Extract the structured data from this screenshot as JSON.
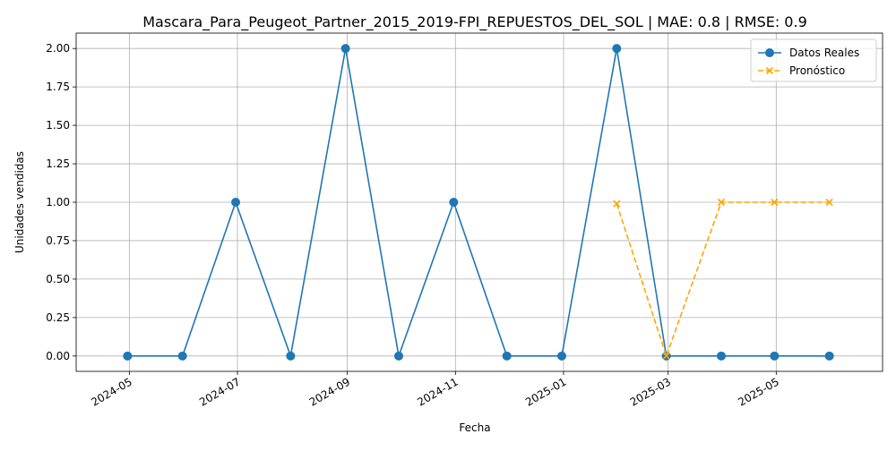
{
  "chart_data": {
    "type": "line",
    "title": "Mascara_Para_Peugeot_Partner_2015_2019-FPI_REPUESTOS_DEL_SOL | MAE: 0.8 | RMSE: 0.9",
    "xlabel": "Fecha",
    "ylabel": "Unidades vendidas",
    "xlim": [
      "2024-04-01",
      "2025-06-30"
    ],
    "ylim": [
      -0.1,
      2.1
    ],
    "grid": true,
    "legend_position": "top-right",
    "x_ticks": [
      "2024-05-01",
      "2024-07-01",
      "2024-09-01",
      "2024-11-01",
      "2025-01-01",
      "2025-03-01",
      "2025-05-01"
    ],
    "x_tick_labels": [
      "2024-05",
      "2024-07",
      "2024-09",
      "2024-11",
      "2025-01",
      "2025-03",
      "2025-05"
    ],
    "y_ticks": [
      0.0,
      0.25,
      0.5,
      0.75,
      1.0,
      1.25,
      1.5,
      1.75,
      2.0
    ],
    "y_tick_labels": [
      "0.00",
      "0.25",
      "0.50",
      "0.75",
      "1.00",
      "1.25",
      "1.50",
      "1.75",
      "2.00"
    ],
    "series": [
      {
        "name": "Datos Reales",
        "color": "#1f77b4",
        "line_style": "solid",
        "marker": "circle",
        "x": [
          "2024-04-30",
          "2024-05-31",
          "2024-06-30",
          "2024-07-31",
          "2024-08-31",
          "2024-09-30",
          "2024-10-31",
          "2024-11-30",
          "2024-12-31",
          "2025-01-31",
          "2025-02-28",
          "2025-03-31",
          "2025-04-30",
          "2025-05-31"
        ],
        "y": [
          0,
          0,
          1,
          0,
          2,
          0,
          1,
          0,
          0,
          2,
          0,
          0,
          0,
          0
        ]
      },
      {
        "name": "Pronóstico",
        "color": "#ffa500",
        "line_style": "dashed",
        "marker": "x",
        "x": [
          "2025-01-31",
          "2025-02-28",
          "2025-03-31",
          "2025-04-30",
          "2025-05-31"
        ],
        "y": [
          0.99,
          0.0,
          1.0,
          1.0,
          1.0
        ]
      }
    ]
  }
}
